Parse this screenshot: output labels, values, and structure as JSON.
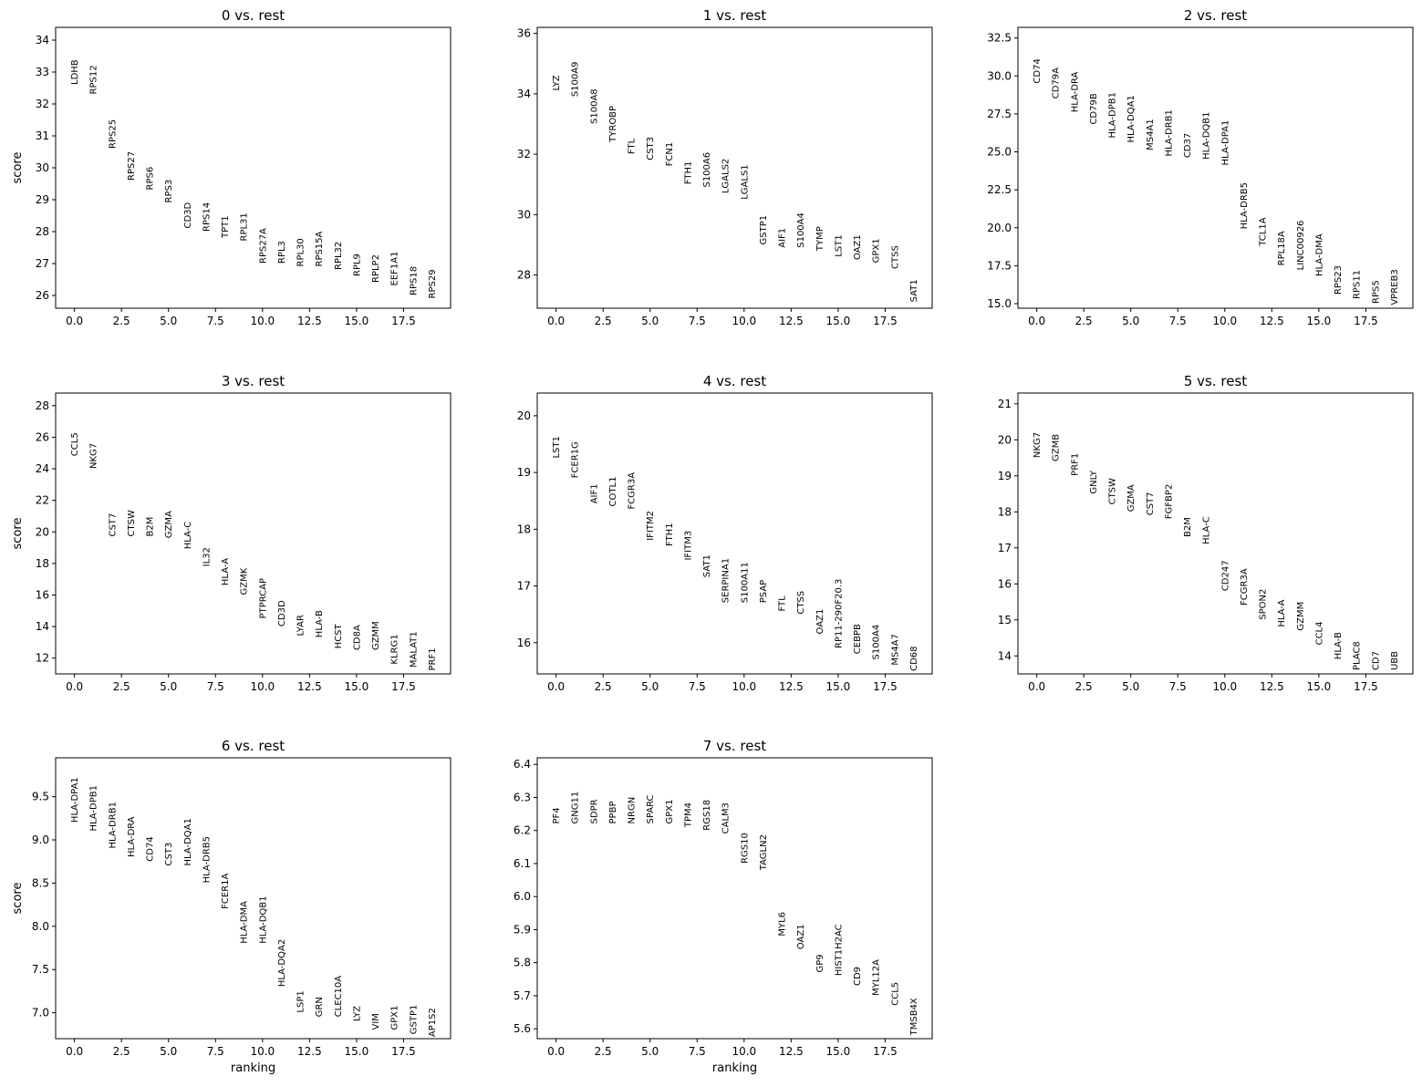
{
  "chart_data": [
    {
      "type": "scatter",
      "title": "0 vs. rest",
      "ylabel": "score",
      "xlabel": "",
      "xlim": [
        -1,
        20
      ],
      "ylim": [
        25.6,
        34.4
      ],
      "xticks": [
        0,
        2.5,
        5,
        7.5,
        10,
        12.5,
        15,
        17.5
      ],
      "xtick_labels": [
        "0.0",
        "2.5",
        "5.0",
        "7.5",
        "10.0",
        "12.5",
        "15.0",
        "17.5"
      ],
      "yticks": [
        26,
        27,
        28,
        29,
        30,
        31,
        32,
        33,
        34
      ],
      "ytick_labels": [
        "26",
        "27",
        "28",
        "29",
        "30",
        "31",
        "32",
        "33",
        "34"
      ],
      "genes": [
        "LDHB",
        "RPS12",
        "RPS25",
        "RPS27",
        "RPS6",
        "RPS3",
        "CD3D",
        "RPS14",
        "TPT1",
        "RPL31",
        "RPS27A",
        "RPL3",
        "RPL30",
        "RPS15A",
        "RPL32",
        "RPL9",
        "RPLP2",
        "EEF1A1",
        "RPS18",
        "RPS29"
      ],
      "scores": [
        32.6,
        32.3,
        30.6,
        29.6,
        29.3,
        28.9,
        28.1,
        28.0,
        27.8,
        27.7,
        27.0,
        27.0,
        26.9,
        26.9,
        26.8,
        26.6,
        26.4,
        26.3,
        26.0,
        25.9
      ]
    },
    {
      "type": "scatter",
      "title": "1 vs. rest",
      "ylabel": "",
      "xlabel": "",
      "xlim": [
        -1,
        20
      ],
      "ylim": [
        26.9,
        36.2
      ],
      "xticks": [
        0,
        2.5,
        5,
        7.5,
        10,
        12.5,
        15,
        17.5
      ],
      "xtick_labels": [
        "0.0",
        "2.5",
        "5.0",
        "7.5",
        "10.0",
        "12.5",
        "15.0",
        "17.5"
      ],
      "yticks": [
        28,
        30,
        32,
        34,
        36
      ],
      "ytick_labels": [
        "28",
        "30",
        "32",
        "34",
        "36"
      ],
      "genes": [
        "LYZ",
        "S100A9",
        "S100A8",
        "TYROBP",
        "FTL",
        "CST3",
        "FCN1",
        "FTH1",
        "S100A6",
        "LGALS2",
        "LGALS1",
        "GSTP1",
        "AIF1",
        "S100A4",
        "TYMP",
        "LST1",
        "OAZ1",
        "GPX1",
        "CTSS",
        "SAT1"
      ],
      "scores": [
        34.1,
        33.9,
        33.0,
        32.4,
        32.0,
        31.8,
        31.6,
        31.0,
        30.9,
        30.7,
        30.5,
        29.0,
        28.9,
        28.9,
        28.8,
        28.6,
        28.5,
        28.4,
        28.2,
        27.1
      ]
    },
    {
      "type": "scatter",
      "title": "2 vs. rest",
      "ylabel": "",
      "xlabel": "",
      "xlim": [
        -1,
        20
      ],
      "ylim": [
        14.7,
        33.2
      ],
      "xticks": [
        0,
        2.5,
        5,
        7.5,
        10,
        12.5,
        15,
        17.5
      ],
      "xtick_labels": [
        "0.0",
        "2.5",
        "5.0",
        "7.5",
        "10.0",
        "12.5",
        "15.0",
        "17.5"
      ],
      "yticks": [
        15,
        17.5,
        20,
        22.5,
        25,
        27.5,
        30,
        32.5
      ],
      "ytick_labels": [
        "15.0",
        "17.5",
        "20.0",
        "22.5",
        "25.0",
        "27.5",
        "30.0",
        "32.5"
      ],
      "genes": [
        "CD74",
        "CD79A",
        "HLA-DRA",
        "CD79B",
        "HLA-DPB1",
        "HLA-DQA1",
        "MS4A1",
        "HLA-DRB1",
        "CD37",
        "HLA-DQB1",
        "HLA-DPA1",
        "HLA-DRB5",
        "TCL1A",
        "RPL18A",
        "LINC00926",
        "HLA-DMA",
        "RPS23",
        "RPS11",
        "RPS5",
        "VPREB3"
      ],
      "scores": [
        29.5,
        28.5,
        27.6,
        26.8,
        25.9,
        25.6,
        25.1,
        24.7,
        24.6,
        24.5,
        24.1,
        19.9,
        18.8,
        17.5,
        17.2,
        16.8,
        15.6,
        15.3,
        15.0,
        14.9
      ]
    },
    {
      "type": "scatter",
      "title": "3 vs. rest",
      "ylabel": "score",
      "xlabel": "",
      "xlim": [
        -1,
        20
      ],
      "ylim": [
        11.0,
        28.8
      ],
      "xticks": [
        0,
        2.5,
        5,
        7.5,
        10,
        12.5,
        15,
        17.5
      ],
      "xtick_labels": [
        "0.0",
        "2.5",
        "5.0",
        "7.5",
        "10.0",
        "12.5",
        "15.0",
        "17.5"
      ],
      "yticks": [
        12,
        14,
        16,
        18,
        20,
        22,
        24,
        26,
        28
      ],
      "ytick_labels": [
        "12",
        "14",
        "16",
        "18",
        "20",
        "22",
        "24",
        "26",
        "28"
      ],
      "genes": [
        "CCL5",
        "NKG7",
        "CST7",
        "CTSW",
        "B2M",
        "GZMA",
        "HLA-C",
        "IL32",
        "HLA-A",
        "GZMK",
        "PTPRCAP",
        "CD3D",
        "LYAR",
        "HLA-B",
        "HCST",
        "CD8A",
        "GZMM",
        "KLRG1",
        "MALAT1",
        "PRF1"
      ],
      "scores": [
        24.8,
        24.0,
        19.7,
        19.7,
        19.7,
        19.6,
        18.9,
        17.8,
        16.6,
        16.0,
        14.5,
        14.0,
        13.4,
        13.3,
        12.6,
        12.5,
        12.5,
        11.6,
        11.4,
        11.2
      ]
    },
    {
      "type": "scatter",
      "title": "4 vs. rest",
      "ylabel": "",
      "xlabel": "",
      "xlim": [
        -1,
        20
      ],
      "ylim": [
        15.45,
        20.4
      ],
      "xticks": [
        0,
        2.5,
        5,
        7.5,
        10,
        12.5,
        15,
        17.5
      ],
      "xtick_labels": [
        "0.0",
        "2.5",
        "5.0",
        "7.5",
        "10.0",
        "12.5",
        "15.0",
        "17.5"
      ],
      "yticks": [
        16,
        17,
        18,
        19,
        20
      ],
      "ytick_labels": [
        "16",
        "17",
        "18",
        "19",
        "20"
      ],
      "genes": [
        "LST1",
        "FCER1G",
        "AIF1",
        "COTL1",
        "FCGR3A",
        "IFITM2",
        "FTH1",
        "IFITM3",
        "SAT1",
        "SERPINA1",
        "S100A11",
        "PSAP",
        "FTL",
        "CTSS",
        "OAZ1",
        "RP11-290F20.3",
        "CEBPB",
        "S100A4",
        "MS4A7",
        "CD68"
      ],
      "scores": [
        19.25,
        18.9,
        18.45,
        18.4,
        18.35,
        17.8,
        17.7,
        17.45,
        17.15,
        16.7,
        16.7,
        16.7,
        16.55,
        16.5,
        16.15,
        15.9,
        15.8,
        15.7,
        15.6,
        15.5
      ]
    },
    {
      "type": "scatter",
      "title": "5 vs. rest",
      "ylabel": "",
      "xlabel": "",
      "xlim": [
        -1,
        20
      ],
      "ylim": [
        13.5,
        21.3
      ],
      "xticks": [
        0,
        2.5,
        5,
        7.5,
        10,
        12.5,
        15,
        17.5
      ],
      "xtick_labels": [
        "0.0",
        "2.5",
        "5.0",
        "7.5",
        "10.0",
        "12.5",
        "15.0",
        "17.5"
      ],
      "yticks": [
        14,
        15,
        16,
        17,
        18,
        19,
        20,
        21
      ],
      "ytick_labels": [
        "14",
        "15",
        "16",
        "17",
        "18",
        "19",
        "20",
        "21"
      ],
      "genes": [
        "NKG7",
        "GZMB",
        "PRF1",
        "GNLY",
        "CTSW",
        "GZMA",
        "CST7",
        "FGFBP2",
        "B2M",
        "HLA-C",
        "CD247",
        "FCGR3A",
        "SPON2",
        "HLA-A",
        "GZMM",
        "CCL4",
        "HLA-B",
        "PLAC8",
        "CD7",
        "UBB"
      ],
      "scores": [
        19.5,
        19.4,
        19.0,
        18.5,
        18.2,
        18.0,
        17.9,
        17.8,
        17.3,
        17.1,
        15.8,
        15.4,
        15.0,
        14.8,
        14.7,
        14.3,
        13.9,
        13.6,
        13.6,
        13.6
      ]
    },
    {
      "type": "scatter",
      "title": "6 vs. rest",
      "ylabel": "score",
      "xlabel": "ranking",
      "xlim": [
        -1,
        20
      ],
      "ylim": [
        6.7,
        9.95
      ],
      "xticks": [
        0,
        2.5,
        5,
        7.5,
        10,
        12.5,
        15,
        17.5
      ],
      "xtick_labels": [
        "0.0",
        "2.5",
        "5.0",
        "7.5",
        "10.0",
        "12.5",
        "15.0",
        "17.5"
      ],
      "yticks": [
        7.0,
        7.5,
        8.0,
        8.5,
        9.0,
        9.5
      ],
      "ytick_labels": [
        "7.0",
        "7.5",
        "8.0",
        "8.5",
        "9.0",
        "9.5"
      ],
      "genes": [
        "HLA-DPA1",
        "HLA-DPB1",
        "HLA-DRB1",
        "HLA-DRA",
        "CD74",
        "CST3",
        "HLA-DQA1",
        "HLA-DRB5",
        "FCER1A",
        "HLA-DMA",
        "HLA-DQB1",
        "HLA-DQA2",
        "LSP1",
        "GRN",
        "CLEC10A",
        "LYZ",
        "VIM",
        "GPX1",
        "GSTP1",
        "AP1S2"
      ],
      "scores": [
        9.2,
        9.1,
        8.9,
        8.8,
        8.75,
        8.7,
        8.7,
        8.5,
        8.2,
        7.8,
        7.8,
        7.3,
        7.0,
        6.95,
        6.95,
        6.9,
        6.8,
        6.8,
        6.75,
        6.72
      ]
    },
    {
      "type": "scatter",
      "title": "7 vs. rest",
      "ylabel": "",
      "xlabel": "ranking",
      "xlim": [
        -1,
        20
      ],
      "ylim": [
        5.57,
        6.42
      ],
      "xticks": [
        0,
        2.5,
        5,
        7.5,
        10,
        12.5,
        15,
        17.5
      ],
      "xtick_labels": [
        "0.0",
        "2.5",
        "5.0",
        "7.5",
        "10.0",
        "12.5",
        "15.0",
        "17.5"
      ],
      "yticks": [
        5.6,
        5.7,
        5.8,
        5.9,
        6.0,
        6.1,
        6.2,
        6.3,
        6.4
      ],
      "ytick_labels": [
        "5.6",
        "5.7",
        "5.8",
        "5.9",
        "6.0",
        "6.1",
        "6.2",
        "6.3",
        "6.4"
      ],
      "genes": [
        "PF4",
        "GNG11",
        "SDPR",
        "PPBP",
        "NRGN",
        "SPARC",
        "GPX1",
        "TPM4",
        "RGS18",
        "CALM3",
        "RGS10",
        "TAGLN2",
        "MYL6",
        "OAZ1",
        "GP9",
        "HIST1H2AC",
        "CD9",
        "MYL12A",
        "CCL5",
        "TMSB4X"
      ],
      "scores": [
        6.22,
        6.22,
        6.22,
        6.22,
        6.22,
        6.22,
        6.22,
        6.21,
        6.2,
        6.19,
        6.1,
        6.08,
        5.88,
        5.84,
        5.77,
        5.76,
        5.73,
        5.7,
        5.67,
        5.58
      ]
    }
  ]
}
